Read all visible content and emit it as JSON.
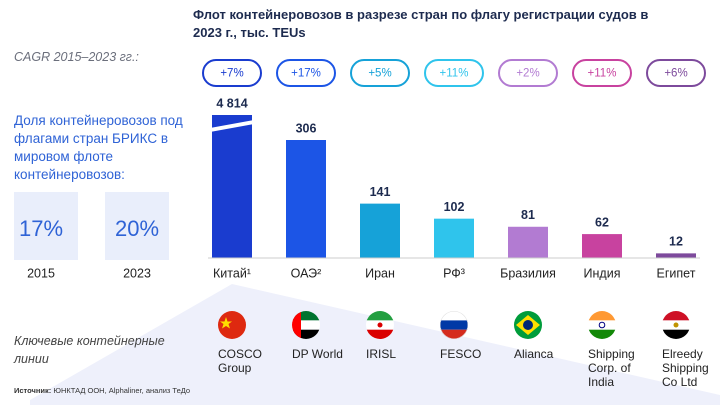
{
  "chart_data": {
    "type": "bar",
    "title": "Флот контейнеровозов в разрезе стран по флагу регистрации судов в 2023 г., тыс. TEUs",
    "categories": [
      "Китай¹",
      "ОАЭ²",
      "Иран",
      "РФ³",
      "Бразилия",
      "Индия",
      "Египет"
    ],
    "values": [
      4814,
      306,
      141,
      102,
      81,
      62,
      12
    ],
    "value_labels": [
      "4 814",
      "306",
      "141",
      "102",
      "81",
      "62",
      "12"
    ],
    "colors": [
      "#1a3ccf",
      "#1c55e6",
      "#16a2d8",
      "#2fc4ec",
      "#b27bd2",
      "#c8429f",
      "#7d4a9c"
    ],
    "axis_break": true
  },
  "cagr": {
    "label": "CAGR 2015–2023 гг.:",
    "values": [
      7,
      17,
      5,
      11,
      2,
      11,
      6
    ],
    "value_labels": [
      "+7%",
      "+17%",
      "+5%",
      "+11%",
      "+2%",
      "+11%",
      "+6%"
    ]
  },
  "brics_share": {
    "label": "Доля контейнеровозов под флагами стран БРИКС в мировом флоте контейнеровозов:",
    "items": [
      {
        "year": "2015",
        "value": 17,
        "label": "17%"
      },
      {
        "year": "2023",
        "value": 20,
        "label": "20%"
      }
    ]
  },
  "lines": {
    "label": "Ключевые контейнерные линии",
    "names": [
      "COSCO Group",
      "DP World",
      "IRISL",
      "FESCO",
      "Alianca",
      "Shipping Corp. of India",
      "Elreedy Shipping Co Ltd"
    ]
  },
  "source": {
    "label": "Источник:",
    "text": "ЮНКТАД ООН, Alphaliner, анализ ТеДо"
  }
}
